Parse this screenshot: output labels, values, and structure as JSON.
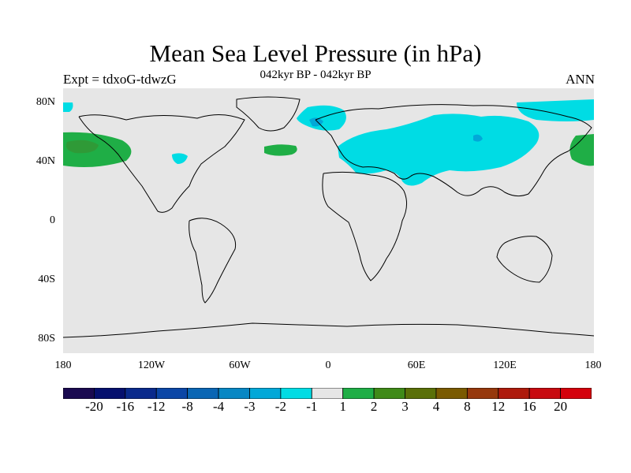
{
  "title": "Mean Sea Level Pressure (in hPa)",
  "left_label": "Expt = tdxoG-tdwzG",
  "center_label": "042kyr BP - 042kyr BP",
  "right_label": "ANN",
  "lat_ticks": [
    "80N",
    "40N",
    "0",
    "40S",
    "80S"
  ],
  "lon_ticks": [
    "180",
    "120W",
    "60W",
    "0",
    "60E",
    "120E",
    "180"
  ],
  "colorbar": {
    "labels": [
      "-20",
      "-16",
      "-12",
      "-8",
      "-4",
      "-3",
      "-2",
      "-1",
      "1",
      "2",
      "3",
      "4",
      "8",
      "12",
      "16",
      "20"
    ],
    "colors": [
      "#1a0a50",
      "#06106e",
      "#0a2a8c",
      "#0b46a6",
      "#0a66b4",
      "#0787c4",
      "#02a8d8",
      "#00dce4",
      "#e6e6e6",
      "#1fae46",
      "#3f8a18",
      "#5a7008",
      "#7a5a00",
      "#96380c",
      "#ae1a0c",
      "#c80a10",
      "#d4000c"
    ]
  },
  "map": {
    "background_color": "#e6e6e6",
    "regions": [
      {
        "name": "north-pacific-positive",
        "level": "2"
      },
      {
        "name": "north-atlantic-positive",
        "level": "2"
      },
      {
        "name": "eurasia-negative",
        "level": "-1"
      },
      {
        "name": "north-atlantic-negative",
        "level": "-1"
      }
    ]
  }
}
